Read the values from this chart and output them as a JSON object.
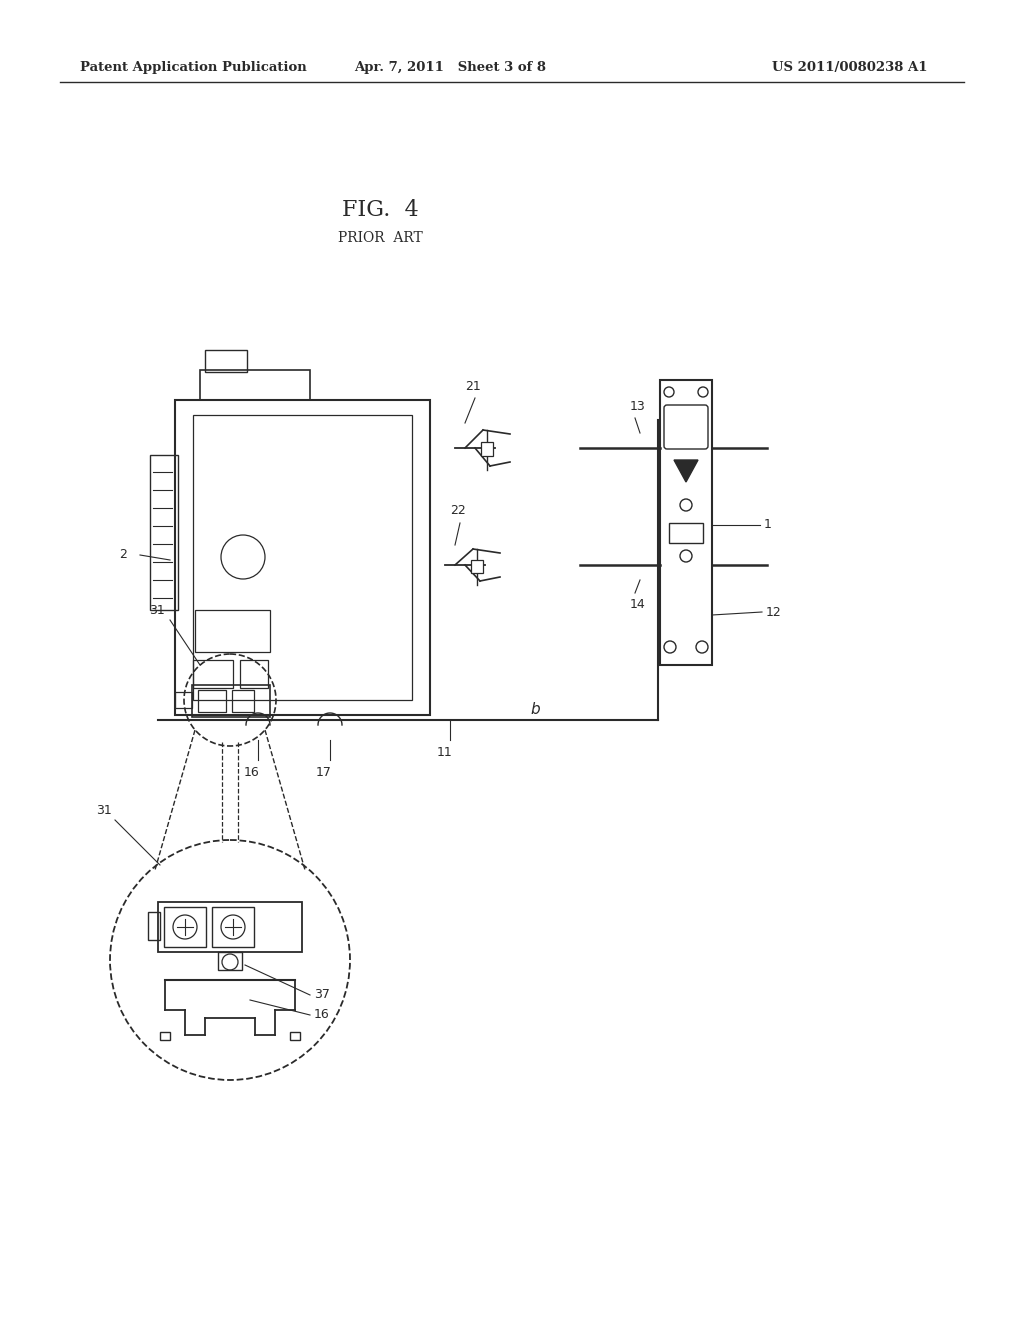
{
  "bg_color": "#ffffff",
  "header_left": "Patent Application Publication",
  "header_mid": "Apr. 7, 2011   Sheet 3 of 8",
  "header_right": "US 2011/0080238 A1",
  "fig_title": "FIG.  4",
  "fig_subtitle": "PRIOR  ART",
  "line_color": "#2a2a2a"
}
